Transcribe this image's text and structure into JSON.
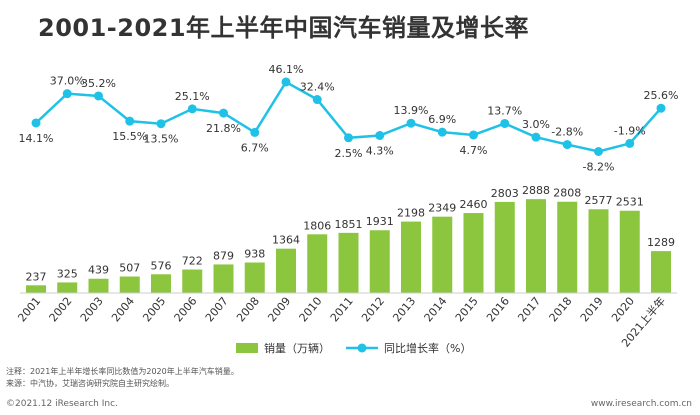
{
  "title": "2001-2021年上半年中国汽车销量及增长率",
  "chart_data": {
    "type": "bar",
    "categories": [
      "2001",
      "2002",
      "2003",
      "2004",
      "2005",
      "2006",
      "2007",
      "2008",
      "2009",
      "2010",
      "2011",
      "2012",
      "2013",
      "2014",
      "2015",
      "2016",
      "2017",
      "2018",
      "2019",
      "2020",
      "2021上半年"
    ],
    "series": [
      {
        "name": "销量（万辆）",
        "type": "bar",
        "color": "#8cc63f",
        "values": [
          237,
          325,
          439,
          507,
          576,
          722,
          879,
          938,
          1364,
          1806,
          1851,
          1931,
          2198,
          2349,
          2460,
          2803,
          2888,
          2808,
          2577,
          2531,
          1289
        ]
      },
      {
        "name": "同比增长率（%）",
        "type": "line",
        "color": "#1fc2e6",
        "values": [
          14.1,
          37.0,
          35.2,
          15.5,
          13.5,
          25.1,
          21.8,
          6.7,
          46.1,
          32.4,
          2.5,
          4.3,
          13.9,
          6.9,
          4.7,
          13.7,
          3.0,
          -2.8,
          -8.2,
          -1.9,
          25.6
        ],
        "labels": [
          "14.1%",
          "37.0%",
          "35.2%",
          "15.5%",
          "13.5%",
          "25.1%",
          "21.8%",
          "6.7%",
          "46.1%",
          "32.4%",
          "2.5%",
          "4.3%",
          "13.9%",
          "6.9%",
          "4.7%",
          "13.7%",
          "3.0%",
          "-2.8%",
          "-8.2%",
          "-1.9%",
          "25.6%"
        ]
      }
    ],
    "legend_position": "bottom-center",
    "grid": false
  },
  "notes": {
    "note1": "注释：2021年上半年增长率同比数值为2020年上半年汽车销量。",
    "note2": "来源：中汽协，艾瑞咨询研究院自主研究绘制。"
  },
  "footer": {
    "left": "©2021.12 iResearch Inc.",
    "right": "www.iresearch.com.cn"
  }
}
